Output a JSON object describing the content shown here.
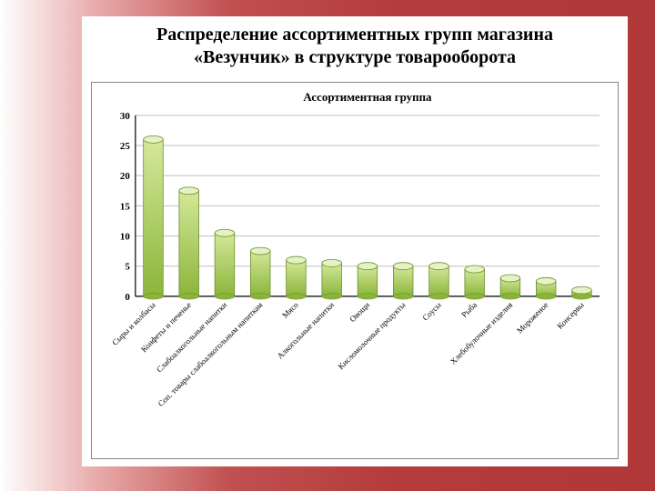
{
  "slide": {
    "title_line1": "Распределение ассортиментных групп магазина",
    "title_line2": "«Везунчик» в структуре товарооборота",
    "title_fontsize": 20,
    "title_color": "#000000",
    "background_gradient_from": "#ffffff",
    "background_gradient_to": "#b03838"
  },
  "chart": {
    "type": "bar",
    "chart_title": "Ассортиментная группа",
    "chart_title_fontsize": 13,
    "categories": [
      "Сыры и колбасы",
      "Конфеты и печенье",
      "Слабоалкогольные напитки",
      "Соп. товары слабоалкогольным напиткам",
      "Мясо",
      "Алкогольные напитки",
      "Овощи",
      "Кисломолочные продукты",
      "Соусы",
      "Рыба",
      "Хлебобулочные изделия",
      "Мороженое",
      "Консервы"
    ],
    "values": [
      26,
      17.5,
      10.5,
      7.5,
      6,
      5.5,
      5,
      5,
      5,
      4.5,
      3,
      2.5,
      1
    ],
    "bar_fill_top": "#d4e89a",
    "bar_fill_bottom": "#8bb53a",
    "bar_stroke": "#6b8f2a",
    "bar_top_fill": "#e5f2c4",
    "bar_width_ratio": 0.55,
    "ylim": [
      0,
      30
    ],
    "ytick_step": 5,
    "yticks": [
      0,
      5,
      10,
      15,
      20,
      25,
      30
    ],
    "grid_color": "#bfbfbf",
    "axis_color": "#000000",
    "background_color": "#ffffff",
    "tick_fontsize": 11,
    "cat_fontsize": 9,
    "cat_rotation": -45
  }
}
